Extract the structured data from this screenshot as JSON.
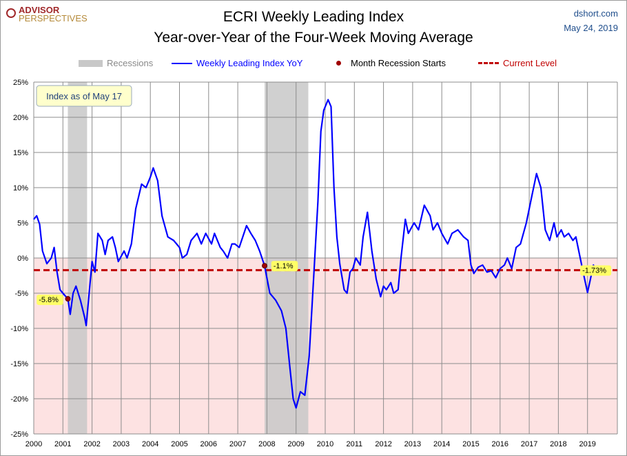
{
  "header": {
    "logo_line1": "ADVISOR",
    "logo_line2": "PERSPECTIVES",
    "source": "dshort.com",
    "date": "May 24, 2019"
  },
  "chart_data": {
    "type": "line",
    "title": "ECRI Weekly Leading Index",
    "subtitle": "Year-over-Year of the Four-Week Moving Average",
    "xlim": [
      2000,
      2019.95
    ],
    "ylim": [
      -25,
      25
    ],
    "yticks": [
      25,
      20,
      15,
      10,
      5,
      0,
      -5,
      -10,
      -15,
      -20,
      -25
    ],
    "ytick_labels": [
      "25%",
      "20%",
      "15%",
      "10%",
      "5%",
      "0%",
      "-5%",
      "-10%",
      "-15%",
      "-20%",
      "-25%"
    ],
    "xticks": [
      2000,
      2001,
      2002,
      2003,
      2004,
      2005,
      2006,
      2007,
      2008,
      2009,
      2010,
      2011,
      2012,
      2013,
      2014,
      2015,
      2016,
      2017,
      2018,
      2019
    ],
    "grid": true,
    "legend_placement": "top",
    "legend": {
      "recessions": "Recessions",
      "series": "Weekly Leading Index YoY",
      "marker": "Month Recession Starts",
      "current": "Current Level"
    },
    "annotation_box": "Index as of May 17",
    "colors": {
      "series": "#0000ff",
      "current": "#c00000",
      "recession": "#c8c8c8",
      "negative_zone": "#fde2e2",
      "marker": "#a00000",
      "label_bg": "#ffff66"
    },
    "recessions": [
      [
        2001.17,
        2001.83
      ],
      [
        2007.92,
        2009.42
      ]
    ],
    "recession_starts": [
      {
        "x": 2001.17,
        "y": -5.8,
        "label": "-5.8%"
      },
      {
        "x": 2007.92,
        "y": -1.1,
        "label": "-1.1%"
      }
    ],
    "current_level": {
      "value": -1.73,
      "label": "-1.73%"
    },
    "series": [
      {
        "name": "Weekly Leading Index YoY",
        "points": [
          [
            2000.0,
            5.5
          ],
          [
            2000.1,
            6.0
          ],
          [
            2000.2,
            4.8
          ],
          [
            2000.3,
            1.0
          ],
          [
            2000.45,
            -0.8
          ],
          [
            2000.6,
            0
          ],
          [
            2000.7,
            1.5
          ],
          [
            2000.8,
            -2
          ],
          [
            2000.9,
            -4.5
          ],
          [
            2001.0,
            -5
          ],
          [
            2001.17,
            -5.8
          ],
          [
            2001.25,
            -8
          ],
          [
            2001.35,
            -5
          ],
          [
            2001.45,
            -4
          ],
          [
            2001.6,
            -6
          ],
          [
            2001.75,
            -8.5
          ],
          [
            2001.8,
            -9.6
          ],
          [
            2001.9,
            -5
          ],
          [
            2002.0,
            -0.5
          ],
          [
            2002.1,
            -2
          ],
          [
            2002.2,
            3.5
          ],
          [
            2002.35,
            2.5
          ],
          [
            2002.45,
            0.5
          ],
          [
            2002.55,
            2.5
          ],
          [
            2002.7,
            3
          ],
          [
            2002.8,
            1.5
          ],
          [
            2002.9,
            -0.5
          ],
          [
            2003.1,
            1
          ],
          [
            2003.2,
            0
          ],
          [
            2003.35,
            2
          ],
          [
            2003.5,
            7
          ],
          [
            2003.7,
            10.5
          ],
          [
            2003.85,
            10
          ],
          [
            2004.0,
            11.5
          ],
          [
            2004.1,
            12.8
          ],
          [
            2004.25,
            11
          ],
          [
            2004.4,
            6
          ],
          [
            2004.6,
            3
          ],
          [
            2004.8,
            2.5
          ],
          [
            2005.0,
            1.5
          ],
          [
            2005.1,
            0
          ],
          [
            2005.25,
            0.5
          ],
          [
            2005.4,
            2.5
          ],
          [
            2005.6,
            3.5
          ],
          [
            2005.75,
            2
          ],
          [
            2005.9,
            3.5
          ],
          [
            2006.1,
            2
          ],
          [
            2006.2,
            3.5
          ],
          [
            2006.4,
            1.5
          ],
          [
            2006.5,
            1
          ],
          [
            2006.65,
            0
          ],
          [
            2006.8,
            2
          ],
          [
            2006.9,
            2
          ],
          [
            2007.05,
            1.5
          ],
          [
            2007.3,
            4.6
          ],
          [
            2007.45,
            3.5
          ],
          [
            2007.6,
            2.5
          ],
          [
            2007.75,
            1
          ],
          [
            2007.92,
            -1.1
          ],
          [
            2008.1,
            -5
          ],
          [
            2008.3,
            -6
          ],
          [
            2008.5,
            -7.5
          ],
          [
            2008.65,
            -10
          ],
          [
            2008.8,
            -16
          ],
          [
            2008.9,
            -20
          ],
          [
            2009.0,
            -21.3
          ],
          [
            2009.15,
            -19
          ],
          [
            2009.3,
            -19.5
          ],
          [
            2009.45,
            -14
          ],
          [
            2009.6,
            -3
          ],
          [
            2009.75,
            8
          ],
          [
            2009.85,
            18
          ],
          [
            2009.95,
            21
          ],
          [
            2010.1,
            22.5
          ],
          [
            2010.2,
            21.5
          ],
          [
            2010.3,
            10
          ],
          [
            2010.4,
            3
          ],
          [
            2010.5,
            -0.8
          ],
          [
            2010.65,
            -4.5
          ],
          [
            2010.75,
            -5
          ],
          [
            2010.85,
            -2
          ],
          [
            2010.95,
            -1.5
          ],
          [
            2011.05,
            0
          ],
          [
            2011.2,
            -1
          ],
          [
            2011.3,
            3
          ],
          [
            2011.45,
            6.5
          ],
          [
            2011.6,
            1
          ],
          [
            2011.75,
            -3
          ],
          [
            2011.9,
            -5.5
          ],
          [
            2012.0,
            -4
          ],
          [
            2012.1,
            -4.5
          ],
          [
            2012.25,
            -3.5
          ],
          [
            2012.35,
            -5
          ],
          [
            2012.5,
            -4.5
          ],
          [
            2012.6,
            0
          ],
          [
            2012.75,
            5.5
          ],
          [
            2012.85,
            3.5
          ],
          [
            2013.05,
            5
          ],
          [
            2013.2,
            4
          ],
          [
            2013.4,
            7.5
          ],
          [
            2013.6,
            6
          ],
          [
            2013.7,
            4
          ],
          [
            2013.85,
            5
          ],
          [
            2014.0,
            3.5
          ],
          [
            2014.2,
            2
          ],
          [
            2014.35,
            3.5
          ],
          [
            2014.55,
            4
          ],
          [
            2014.75,
            3
          ],
          [
            2014.9,
            2.5
          ],
          [
            2015.0,
            -1
          ],
          [
            2015.1,
            -2.2
          ],
          [
            2015.25,
            -1.3
          ],
          [
            2015.4,
            -1
          ],
          [
            2015.55,
            -2
          ],
          [
            2015.7,
            -1.8
          ],
          [
            2015.85,
            -2.8
          ],
          [
            2016.0,
            -1.5
          ],
          [
            2016.15,
            -1
          ],
          [
            2016.25,
            0
          ],
          [
            2016.4,
            -1.5
          ],
          [
            2016.55,
            1.5
          ],
          [
            2016.7,
            2
          ],
          [
            2016.9,
            5
          ],
          [
            2017.0,
            7
          ],
          [
            2017.1,
            9
          ],
          [
            2017.25,
            12
          ],
          [
            2017.4,
            10
          ],
          [
            2017.55,
            4
          ],
          [
            2017.7,
            2.5
          ],
          [
            2017.85,
            5
          ],
          [
            2017.95,
            3
          ],
          [
            2018.1,
            4
          ],
          [
            2018.2,
            3
          ],
          [
            2018.35,
            3.5
          ],
          [
            2018.5,
            2.5
          ],
          [
            2018.6,
            3
          ],
          [
            2018.75,
            0
          ],
          [
            2018.9,
            -3
          ],
          [
            2019.0,
            -4.9
          ],
          [
            2019.1,
            -3
          ],
          [
            2019.2,
            -1
          ],
          [
            2019.3,
            -1.73
          ],
          [
            2019.38,
            -1.73
          ]
        ]
      }
    ]
  }
}
